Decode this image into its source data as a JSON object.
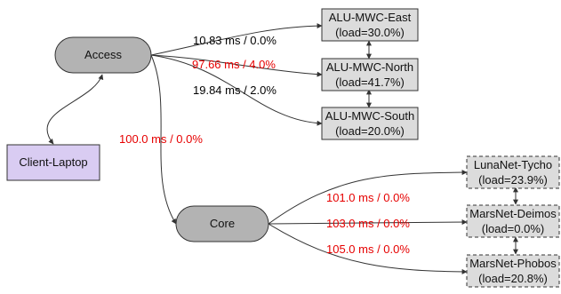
{
  "colors": {
    "stroke": "#333333",
    "pill_fill": "#b3b3b3",
    "box_fill": "#dcdcdc",
    "client_fill": "#d9ccf2",
    "label_black": "#000000",
    "label_red": "#e60000"
  },
  "nodes": {
    "access": "Access",
    "core": "Core",
    "client": "Client-Laptop",
    "east": [
      "ALU-MWC-East",
      "(load=30.0%)"
    ],
    "north": [
      "ALU-MWC-North",
      "(load=41.7%)"
    ],
    "south": [
      "ALU-MWC-South",
      "(load=20.0%)"
    ],
    "tycho": [
      "LunaNet-Tycho",
      "(load=23.9%)"
    ],
    "deimos": [
      "MarsNet-Deimos",
      "(load=0.0%)"
    ],
    "phobos": [
      "MarsNet-Phobos",
      "(load=20.8%)"
    ]
  },
  "edges": {
    "access_east": {
      "text": "10.83 ms / 0.0%",
      "color": "#000000"
    },
    "access_north": {
      "text": "97.66 ms / 4.0%",
      "color": "#e60000"
    },
    "access_south": {
      "text": "19.84 ms / 2.0%",
      "color": "#000000"
    },
    "access_core": {
      "text": "100.0 ms / 0.0%",
      "color": "#e60000"
    },
    "core_tycho": {
      "text": "101.0 ms / 0.0%",
      "color": "#e60000"
    },
    "core_deimos": {
      "text": "103.0 ms / 0.0%",
      "color": "#e60000"
    },
    "core_phobos": {
      "text": "105.0 ms / 0.0%",
      "color": "#e60000"
    }
  }
}
